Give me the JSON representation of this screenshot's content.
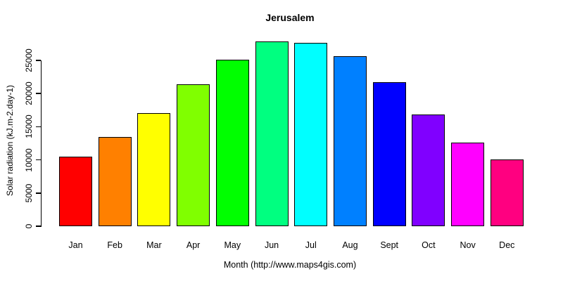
{
  "chart_data": {
    "type": "bar",
    "title": "Jerusalem",
    "xlabel": "Month (http://www.maps4gis.com)",
    "ylabel": "Solar radiation (kJ.m-2.day-1)",
    "categories": [
      "Jan",
      "Feb",
      "Mar",
      "Apr",
      "May",
      "Jun",
      "Jul",
      "Aug",
      "Sept",
      "Oct",
      "Nov",
      "Dec"
    ],
    "values": [
      10500,
      13500,
      17100,
      21400,
      25100,
      27900,
      27650,
      25650,
      21700,
      16850,
      12600,
      10050
    ],
    "bar_colors": [
      "#FF0000",
      "#FF8000",
      "#FFFF00",
      "#80FF00",
      "#00FF00",
      "#00FF80",
      "#00FFFF",
      "#0080FF",
      "#0000FF",
      "#8000FF",
      "#FF00FF",
      "#FF0080"
    ],
    "bar_border_color": "#000000",
    "yticks": [
      0,
      5000,
      10000,
      15000,
      20000,
      25000
    ],
    "ylim": [
      0,
      28000
    ],
    "grid": false,
    "legend_position": "none",
    "background_color": "#FFFFFF"
  }
}
